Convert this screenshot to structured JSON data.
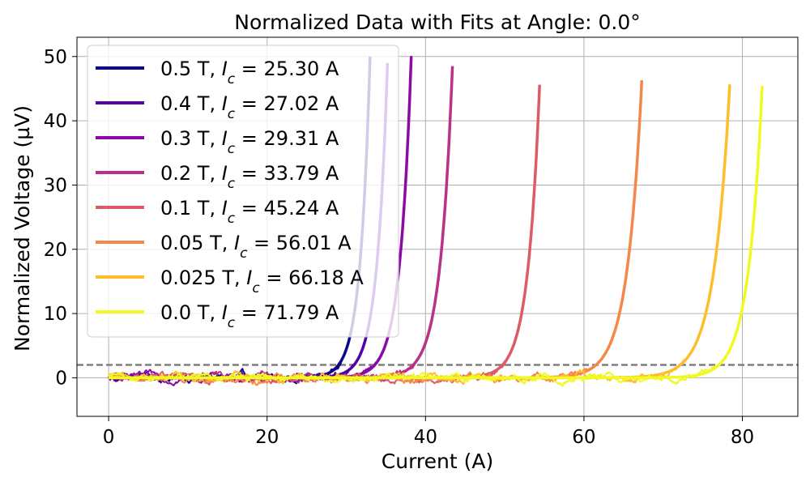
{
  "chart_data": {
    "type": "line",
    "title": "Normalized Data with Fits at Angle: 0.0°",
    "xlabel": "Current (A)",
    "ylabel": "Normalized Voltage (µV)",
    "xlim": [
      -4,
      87
    ],
    "ylim": [
      -6,
      53
    ],
    "xticks": [
      0,
      20,
      40,
      60,
      80
    ],
    "yticks": [
      0,
      10,
      20,
      30,
      40,
      50
    ],
    "grid": true,
    "legend_position": "top-left",
    "threshold_line": {
      "y": 2,
      "style": "dashed",
      "color": "#7f7f7f"
    },
    "series": [
      {
        "name": "0.5 T, I_c = 25.30 A",
        "field": "0.5 T",
        "ic_label": "25.30 A",
        "ic": 25.3,
        "i_end": 33.0,
        "v_end": 50,
        "color": "#0d0887"
      },
      {
        "name": "0.4 T, I_c = 27.02 A",
        "field": "0.4 T",
        "ic_label": "27.02 A",
        "ic": 27.02,
        "i_end": 35.2,
        "v_end": 49,
        "color": "#5302a3"
      },
      {
        "name": "0.3 T, I_c = 29.31 A",
        "field": "0.3 T",
        "ic_label": "29.31 A",
        "ic": 29.31,
        "i_end": 38.2,
        "v_end": 50,
        "color": "#8b0aa5"
      },
      {
        "name": "0.2 T, I_c = 33.79 A",
        "field": "0.2 T",
        "ic_label": "33.79 A",
        "ic": 33.79,
        "i_end": 43.4,
        "v_end": 48.5,
        "color": "#b83289"
      },
      {
        "name": "0.1 T, I_c = 45.24 A",
        "field": "0.1 T",
        "ic_label": "45.24 A",
        "ic": 45.24,
        "i_end": 54.4,
        "v_end": 45.6,
        "color": "#db5c68"
      },
      {
        "name": "0.05 T, I_c = 56.01 A",
        "field": "0.05 T",
        "ic_label": "56.01 A",
        "ic": 56.01,
        "i_end": 67.3,
        "v_end": 46.3,
        "color": "#f48849"
      },
      {
        "name": "0.025 T, I_c = 66.18 A",
        "field": "0.025 T",
        "ic_label": "66.18 A",
        "ic": 66.18,
        "i_end": 78.4,
        "v_end": 45.6,
        "color": "#febd2a"
      },
      {
        "name": "0.0 T, I_c = 71.79 A",
        "field": "0.0 T",
        "ic_label": "71.79 A",
        "ic": 71.79,
        "i_end": 82.5,
        "v_end": 45.4,
        "color": "#f0f921"
      }
    ]
  }
}
